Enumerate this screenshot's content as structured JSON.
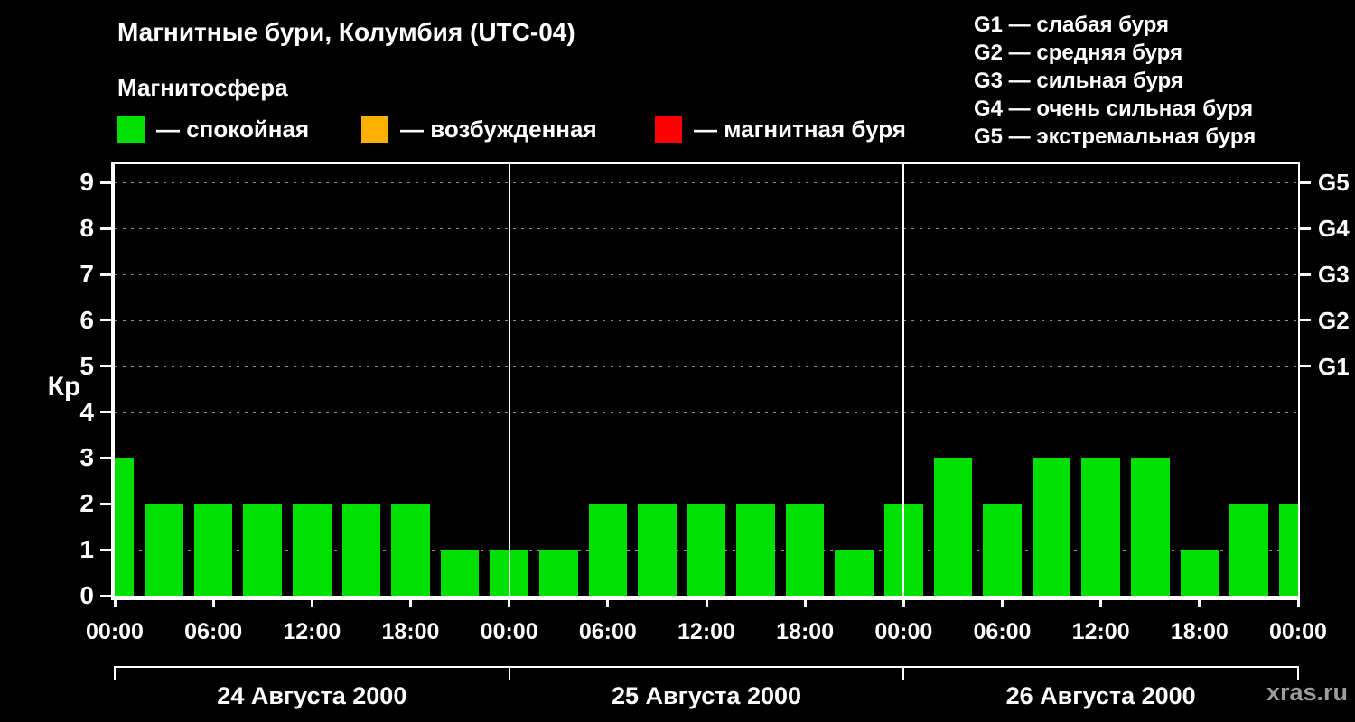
{
  "title": "Магнитные бури, Колумбия (UTC-04)",
  "subtitle": "Магнитосфера",
  "legend": {
    "items": [
      {
        "label": "— спокойная",
        "color": "#00e000"
      },
      {
        "label": "— возбужденная",
        "color": "#ffb000"
      },
      {
        "label": "— магнитная буря",
        "color": "#ff0000"
      }
    ]
  },
  "storm_scale": {
    "lines": [
      "G1 — слабая буря",
      "G2 — средняя буря",
      "G3 — сильная буря",
      "G4 — очень сильная буря",
      "G5 — экстремальная буря"
    ]
  },
  "watermark": "xras.ru",
  "chart_data": {
    "type": "bar",
    "title": "Магнитные бури, Колумбия (UTC-04)",
    "ylabel": "Кр",
    "ylim": [
      0,
      9.4
    ],
    "yticks": [
      0,
      1,
      2,
      3,
      4,
      5,
      6,
      7,
      8,
      9
    ],
    "grid": "horizontal-dashed",
    "legend_position": "top",
    "bar_color": "#00e000",
    "interval_hours": 3,
    "x_hours_range": [
      0,
      72
    ],
    "x_tick_labels": [
      "00:00",
      "06:00",
      "12:00",
      "18:00",
      "00:00",
      "06:00",
      "12:00",
      "18:00",
      "00:00",
      "06:00",
      "12:00",
      "18:00",
      "00:00"
    ],
    "right_axis": [
      {
        "label": "G5",
        "value": 9
      },
      {
        "label": "G4",
        "value": 8
      },
      {
        "label": "G3",
        "value": 7
      },
      {
        "label": "G2",
        "value": 6
      },
      {
        "label": "G1",
        "value": 5
      }
    ],
    "day_labels": [
      "24 Августа 2000",
      "25 Августа 2000",
      "26 Августа 2000"
    ],
    "kp_hours": [
      0,
      3,
      6,
      9,
      12,
      15,
      18,
      21,
      24,
      27,
      30,
      33,
      36,
      39,
      42,
      45,
      48,
      51,
      54,
      57,
      60,
      63,
      66,
      69,
      72
    ],
    "kp_values": [
      3,
      2,
      2,
      2,
      2,
      2,
      2,
      1,
      1,
      1,
      2,
      2,
      2,
      2,
      2,
      1,
      2,
      3,
      2,
      3,
      3,
      3,
      1,
      2,
      2
    ],
    "note": "bars centered on 3-hour marks; first and last bars clipped at plot edges"
  }
}
